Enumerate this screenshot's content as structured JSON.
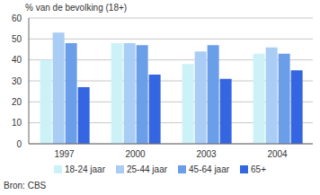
{
  "chart_data": {
    "type": "bar",
    "y_label": "% van de bevolking (18+)",
    "source": "Bron: CBS",
    "categories": [
      "1997",
      "2000",
      "2003",
      "2004"
    ],
    "series": [
      {
        "name": "18-24 jaar",
        "color": "#ccf2f8",
        "values": [
          40,
          48,
          38,
          43
        ]
      },
      {
        "name": "25-44 jaar",
        "color": "#a9cdf5",
        "values": [
          53,
          48,
          44,
          46
        ]
      },
      {
        "name": "45-64 jaar",
        "color": "#6b9ee8",
        "values": [
          48,
          47,
          47,
          43
        ]
      },
      {
        "name": "65+",
        "color": "#3366e0",
        "values": [
          27,
          33,
          31,
          35
        ]
      }
    ],
    "ylim": [
      0,
      60
    ],
    "yticks": [
      0,
      10,
      20,
      30,
      40,
      50,
      60
    ],
    "grid": true,
    "legend": "bottom"
  }
}
